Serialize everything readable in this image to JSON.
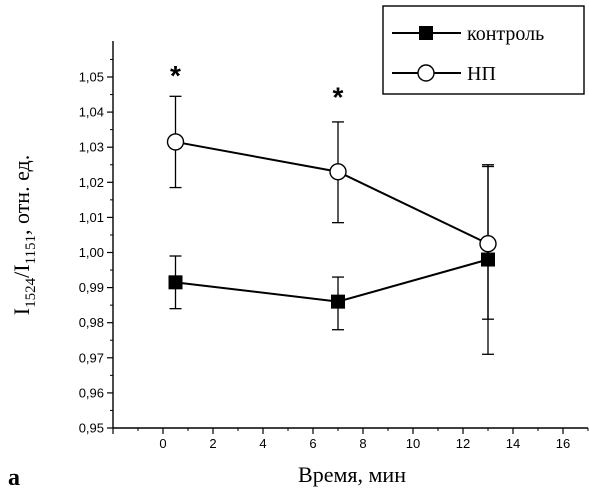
{
  "chart_data": {
    "type": "line",
    "title": "",
    "xlabel": "Время, мин",
    "ylabel": {
      "base": "I",
      "sub1": "1524",
      "slash": "/I",
      "sub2": "1151",
      "rest": ", отн. ед."
    },
    "xlim": [
      -2,
      17
    ],
    "ylim": [
      0.95,
      1.055
    ],
    "xticks": [
      0,
      2,
      4,
      6,
      8,
      10,
      12,
      14,
      16
    ],
    "xtick_labels": [
      "0",
      "2",
      "4",
      "6",
      "8",
      "10",
      "12",
      "14",
      "16"
    ],
    "yticks": [
      0.95,
      0.96,
      0.97,
      0.98,
      0.99,
      1.0,
      1.01,
      1.02,
      1.03,
      1.04,
      1.05
    ],
    "ytick_labels": [
      "0,95",
      "0,96",
      "0,97",
      "0,98",
      "0,99",
      "1,00",
      "1,01",
      "1,02",
      "1,03",
      "1,04",
      "1,05"
    ],
    "grid": false,
    "legend_position": "top-right",
    "series": [
      {
        "name": "контроль",
        "marker": "filled-square",
        "x": [
          0.5,
          7,
          13
        ],
        "y": [
          0.9915,
          0.986,
          0.998
        ],
        "err_low": [
          0.984,
          0.978,
          0.971
        ],
        "err_high": [
          0.999,
          0.993,
          1.025
        ]
      },
      {
        "name": "НП",
        "marker": "open-circle",
        "x": [
          0.5,
          7,
          13
        ],
        "y": [
          1.0315,
          1.023,
          1.0025
        ],
        "err_low": [
          1.0185,
          1.0085,
          0.981
        ],
        "err_high": [
          1.0445,
          1.0372,
          1.0245
        ]
      }
    ],
    "annotations": [
      {
        "text": "*",
        "x": 0.5,
        "y": 1.0505
      },
      {
        "text": "*",
        "x": 7,
        "y": 1.0445
      }
    ],
    "panel_label": "а"
  },
  "colors": {
    "ink": "#000000",
    "background": "#ffffff",
    "open_marker_fill": "#ffffff"
  }
}
